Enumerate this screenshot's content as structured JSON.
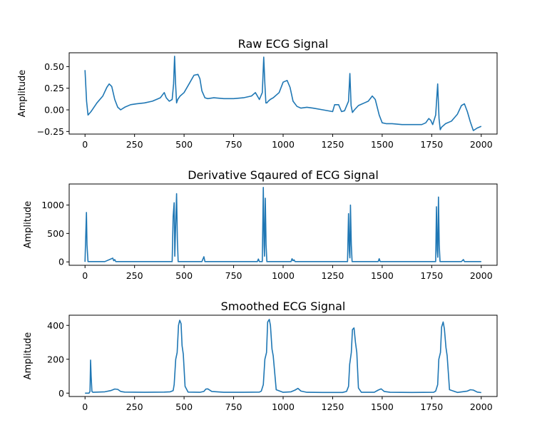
{
  "chart_data": [
    {
      "type": "line",
      "title": "Raw ECG Signal",
      "xlabel": "",
      "ylabel": "Amplitude",
      "xlim": [
        -80,
        2080
      ],
      "ylim": [
        -0.28,
        0.66
      ],
      "xticks": [
        0,
        250,
        500,
        750,
        1000,
        1250,
        1500,
        1750,
        2000
      ],
      "yticks": [
        -0.25,
        0.0,
        0.25,
        0.5
      ],
      "ytick_labels": [
        "−0.25",
        "0.00",
        "0.25",
        "0.50"
      ],
      "grid": false,
      "series": [
        {
          "color": "#1f77b4",
          "x": [
            0,
            8,
            15,
            30,
            60,
            90,
            110,
            122,
            135,
            150,
            165,
            180,
            200,
            230,
            260,
            300,
            340,
            380,
            400,
            410,
            425,
            440,
            447,
            452,
            457,
            462,
            468,
            480,
            500,
            525,
            550,
            570,
            580,
            590,
            605,
            620,
            650,
            700,
            750,
            800,
            840,
            860,
            870,
            880,
            895,
            902,
            908,
            913,
            918,
            925,
            935,
            950,
            980,
            1000,
            1020,
            1035,
            1050,
            1070,
            1090,
            1120,
            1150,
            1200,
            1250,
            1260,
            1280,
            1295,
            1310,
            1330,
            1337,
            1343,
            1350,
            1360,
            1380,
            1410,
            1430,
            1450,
            1465,
            1485,
            1500,
            1520,
            1550,
            1600,
            1650,
            1700,
            1720,
            1735,
            1745,
            1755,
            1770,
            1780,
            1787,
            1793,
            1800,
            1820,
            1850,
            1880,
            1900,
            1915,
            1930,
            1945,
            1960,
            1980,
            2000
          ],
          "y": [
            0.46,
            0.1,
            -0.06,
            -0.02,
            0.08,
            0.16,
            0.26,
            0.3,
            0.27,
            0.12,
            0.03,
            0.0,
            0.03,
            0.06,
            0.07,
            0.08,
            0.1,
            0.14,
            0.2,
            0.14,
            0.1,
            0.12,
            0.3,
            0.62,
            0.3,
            0.08,
            0.12,
            0.16,
            0.2,
            0.3,
            0.4,
            0.41,
            0.36,
            0.22,
            0.14,
            0.13,
            0.14,
            0.13,
            0.13,
            0.14,
            0.16,
            0.2,
            0.16,
            0.12,
            0.2,
            0.61,
            0.3,
            0.08,
            0.08,
            0.1,
            0.12,
            0.14,
            0.2,
            0.32,
            0.34,
            0.26,
            0.1,
            0.04,
            0.02,
            0.03,
            0.02,
            0.0,
            -0.02,
            0.06,
            0.06,
            -0.02,
            -0.01,
            0.1,
            0.42,
            0.05,
            -0.03,
            0.0,
            0.05,
            0.08,
            0.1,
            0.16,
            0.12,
            -0.06,
            -0.15,
            -0.16,
            -0.16,
            -0.17,
            -0.17,
            -0.17,
            -0.15,
            -0.1,
            -0.12,
            -0.17,
            -0.06,
            0.3,
            -0.1,
            -0.23,
            -0.2,
            -0.16,
            -0.13,
            -0.05,
            0.05,
            0.07,
            -0.02,
            -0.14,
            -0.24,
            -0.21,
            -0.19
          ]
        }
      ]
    },
    {
      "type": "line",
      "title": "Derivative Sqaured of ECG Signal",
      "xlabel": "",
      "ylabel": "Amplitude",
      "xlim": [
        -80,
        2080
      ],
      "ylim": [
        -60,
        1370
      ],
      "xticks": [
        0,
        250,
        500,
        750,
        1000,
        1250,
        1500,
        1750,
        2000
      ],
      "yticks": [
        0,
        500,
        1000
      ],
      "ytick_labels": [
        "0",
        "500",
        "1000"
      ],
      "grid": false,
      "series": [
        {
          "color": "#1f77b4",
          "x": [
            0,
            3,
            7,
            10,
            15,
            100,
            140,
            145,
            150,
            155,
            300,
            440,
            445,
            450,
            453,
            457,
            462,
            466,
            470,
            590,
            600,
            605,
            870,
            875,
            880,
            895,
            900,
            904,
            906,
            910,
            914,
            918,
            1000,
            1040,
            1045,
            1050,
            1055,
            1060,
            1325,
            1330,
            1334,
            1337,
            1340,
            1344,
            1348,
            1480,
            1485,
            1490,
            1770,
            1774,
            1778,
            1781,
            1784,
            1788,
            1792,
            1900,
            1910,
            1915,
            2000
          ],
          "y": [
            0,
            400,
            870,
            300,
            5,
            5,
            65,
            20,
            40,
            5,
            5,
            5,
            800,
            1040,
            100,
            600,
            1200,
            400,
            5,
            5,
            90,
            5,
            5,
            50,
            5,
            5,
            1310,
            300,
            100,
            1120,
            300,
            5,
            5,
            5,
            55,
            20,
            35,
            5,
            5,
            850,
            200,
            70,
            1000,
            300,
            5,
            5,
            55,
            5,
            5,
            970,
            200,
            80,
            1140,
            300,
            5,
            5,
            40,
            5,
            5
          ]
        }
      ]
    },
    {
      "type": "line",
      "title": "Smoothed ECG Signal",
      "xlabel": "",
      "ylabel": "Amplitude",
      "xlim": [
        -80,
        2080
      ],
      "ylim": [
        -20,
        460
      ],
      "xticks": [
        0,
        250,
        500,
        750,
        1000,
        1250,
        1500,
        1750,
        2000
      ],
      "yticks": [
        0,
        200,
        400
      ],
      "ytick_labels": [
        "0",
        "200",
        "400"
      ],
      "grid": false,
      "series": [
        {
          "color": "#1f77b4",
          "x": [
            0,
            20,
            25,
            28,
            31,
            35,
            40,
            100,
            130,
            150,
            165,
            180,
            200,
            300,
            400,
            430,
            445,
            450,
            458,
            465,
            472,
            478,
            485,
            490,
            496,
            505,
            520,
            580,
            600,
            610,
            620,
            640,
            700,
            800,
            880,
            890,
            900,
            908,
            916,
            922,
            930,
            936,
            944,
            950,
            965,
            1000,
            1040,
            1060,
            1075,
            1090,
            1120,
            1200,
            1300,
            1320,
            1330,
            1336,
            1344,
            1350,
            1358,
            1365,
            1372,
            1380,
            1395,
            1460,
            1480,
            1495,
            1510,
            1540,
            1650,
            1760,
            1770,
            1780,
            1786,
            1794,
            1800,
            1808,
            1814,
            1822,
            1828,
            1840,
            1880,
            1930,
            1945,
            1960,
            1980,
            2000
          ],
          "y": [
            0,
            0,
            10,
            195,
            100,
            10,
            5,
            8,
            15,
            24,
            22,
            10,
            6,
            5,
            6,
            8,
            15,
            50,
            200,
            240,
            400,
            430,
            410,
            280,
            230,
            40,
            6,
            5,
            10,
            24,
            25,
            10,
            5,
            5,
            6,
            12,
            50,
            200,
            240,
            420,
            435,
            400,
            260,
            220,
            20,
            5,
            8,
            18,
            28,
            12,
            5,
            4,
            4,
            10,
            40,
            170,
            240,
            375,
            385,
            300,
            240,
            30,
            5,
            5,
            18,
            25,
            10,
            5,
            4,
            5,
            12,
            50,
            200,
            240,
            390,
            420,
            380,
            270,
            220,
            20,
            4,
            12,
            20,
            18,
            6,
            3
          ]
        }
      ]
    }
  ]
}
